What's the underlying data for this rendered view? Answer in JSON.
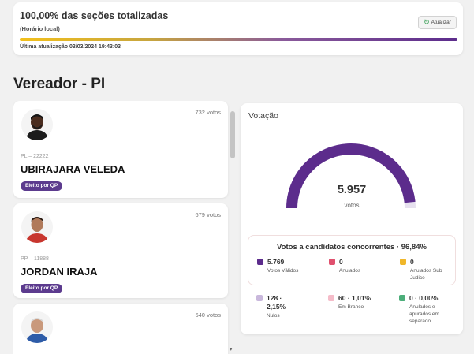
{
  "status": {
    "title": "100,00% das seções totalizadas",
    "subtitle": "(Horário local)",
    "refresh_label": "Atualizar",
    "progress_pct": 100,
    "last_update": "Última atualização 03/03/2024 19:43:03"
  },
  "section_title": "Vereador - PI",
  "candidates": [
    {
      "votes": "732 votos",
      "party": "PL – 22222",
      "name": "UBIRAJARA VELEDA",
      "badge": "Eleito por QP"
    },
    {
      "votes": "679 votos",
      "party": "PP – 11888",
      "name": "JORDAN IRAJA",
      "badge": "Eleito por QP"
    },
    {
      "votes": "640 votos"
    }
  ],
  "votacao": {
    "title": "Votação",
    "total": "5.957",
    "unit": "votos",
    "gauge_fraction": 0.9684,
    "summary_title": "Votos a candidatos concorrentes · 96,84%",
    "stats": [
      {
        "value": "5.769",
        "label": "Votos Válidos",
        "color": "#5c2c8c"
      },
      {
        "value": "0",
        "label": "Anulados",
        "color": "#e0506e"
      },
      {
        "value": "0",
        "label": "Anulados Sub Judice",
        "color": "#f0b72a"
      },
      {
        "value": "128 · 2,15%",
        "label": "Nulos",
        "color": "#c9b8dc"
      },
      {
        "value": "60 · 1,01%",
        "label": "Em Branco",
        "color": "#f5bcc9"
      },
      {
        "value": "0 · 0,00%",
        "label": "Anulados e apurados em separado",
        "color": "#4cae7a"
      }
    ]
  },
  "colors": {
    "accent": "#5c2c8c",
    "badge": "#5c3b8e"
  }
}
